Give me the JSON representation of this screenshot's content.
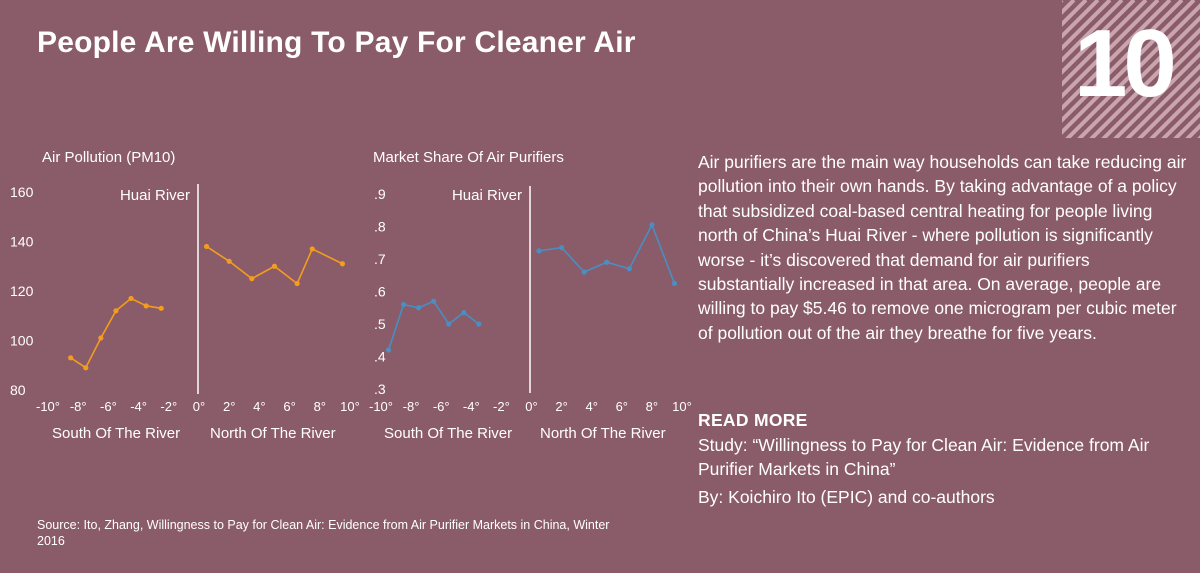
{
  "header": {
    "title": "People Are Willing To Pay For Cleaner Air",
    "badge_number": "10"
  },
  "colors": {
    "background": "#8a5b68",
    "pollution_series": "#f39c1f",
    "purifier_series": "#4a8ec2",
    "text": "#ffffff"
  },
  "chart_data": [
    {
      "type": "line",
      "title": "Air Pollution (PM10)",
      "divider_label": "Huai River",
      "x_ticks": [
        "-10°",
        "-8°",
        "-6°",
        "-4°",
        "-2°",
        "0°",
        "2°",
        "4°",
        "6°",
        "8°",
        "10°"
      ],
      "y_ticks": [
        "80",
        "100",
        "120",
        "140",
        "160"
      ],
      "ylim": [
        80,
        160
      ],
      "xlim": [
        -10,
        10
      ],
      "region_labels": [
        "South Of The River",
        "North Of The River"
      ],
      "series": [
        {
          "color": "#f39c1f",
          "segments": [
            {
              "x": [
                -9.5,
                -8.5,
                -7.5,
                -6.5,
                -5.5,
                -4.5,
                -3.5,
                -2.5,
                -1.5,
                -0.5
              ],
              "y": [
                null,
                93,
                89,
                101,
                112,
                117,
                114,
                113,
                null,
                null
              ]
            },
            {
              "x": [
                0.5,
                2,
                3.5,
                5,
                6.5,
                7.5,
                9.5
              ],
              "y": [
                138,
                132,
                125,
                130,
                123,
                137,
                131
              ]
            }
          ]
        }
      ]
    },
    {
      "type": "line",
      "title": "Market Share Of Air Purifiers",
      "divider_label": "Huai River",
      "x_ticks": [
        "-10°",
        "-8°",
        "-6°",
        "-4°",
        "-2°",
        "0°",
        "2°",
        "4°",
        "6°",
        "8°",
        "10°"
      ],
      "y_ticks": [
        ".3",
        ".4",
        ".5",
        ".6",
        ".7",
        ".8",
        ".9"
      ],
      "ylim": [
        0.3,
        0.9
      ],
      "xlim": [
        -10,
        10
      ],
      "region_labels": [
        "South Of The River",
        "North Of The River"
      ],
      "series": [
        {
          "color": "#4a8ec2",
          "segments": [
            {
              "x": [
                -9.5,
                -8.5,
                -7.5,
                -6.5,
                -5.5,
                -4.5,
                -3.5,
                -2.5
              ],
              "y": [
                0.42,
                0.56,
                0.55,
                0.57,
                0.5,
                0.535,
                0.5,
                null
              ]
            },
            {
              "x": [
                0.5,
                2,
                3.5,
                5,
                6.5,
                8,
                9.5
              ],
              "y": [
                0.725,
                0.735,
                0.66,
                0.69,
                0.67,
                0.805,
                0.625
              ]
            }
          ]
        }
      ]
    }
  ],
  "text_panel": {
    "body": "Air purifiers are the main way households can take reducing air pollution into their own hands. By taking advantage of a policy that subsidized coal-based central heating for people living north of China’s Huai River - where pollution is significantly worse - it’s discovered that demand for air purifiers substantially increased in that area. On average, people are willing to pay $5.46 to remove one microgram per cubic meter of pollution out of the air they breathe for five years.",
    "read_more": "READ MORE",
    "study": "Study: “Willingness to Pay for Clean Air: Evidence from Air Purifier Markets in China”",
    "byline": "By: Koichiro Ito (EPIC) and co-authors"
  },
  "footer": {
    "source": "Source: Ito, Zhang, Willingness to Pay for Clean Air: Evidence from Air Purifier Markets in China, Winter 2016"
  }
}
